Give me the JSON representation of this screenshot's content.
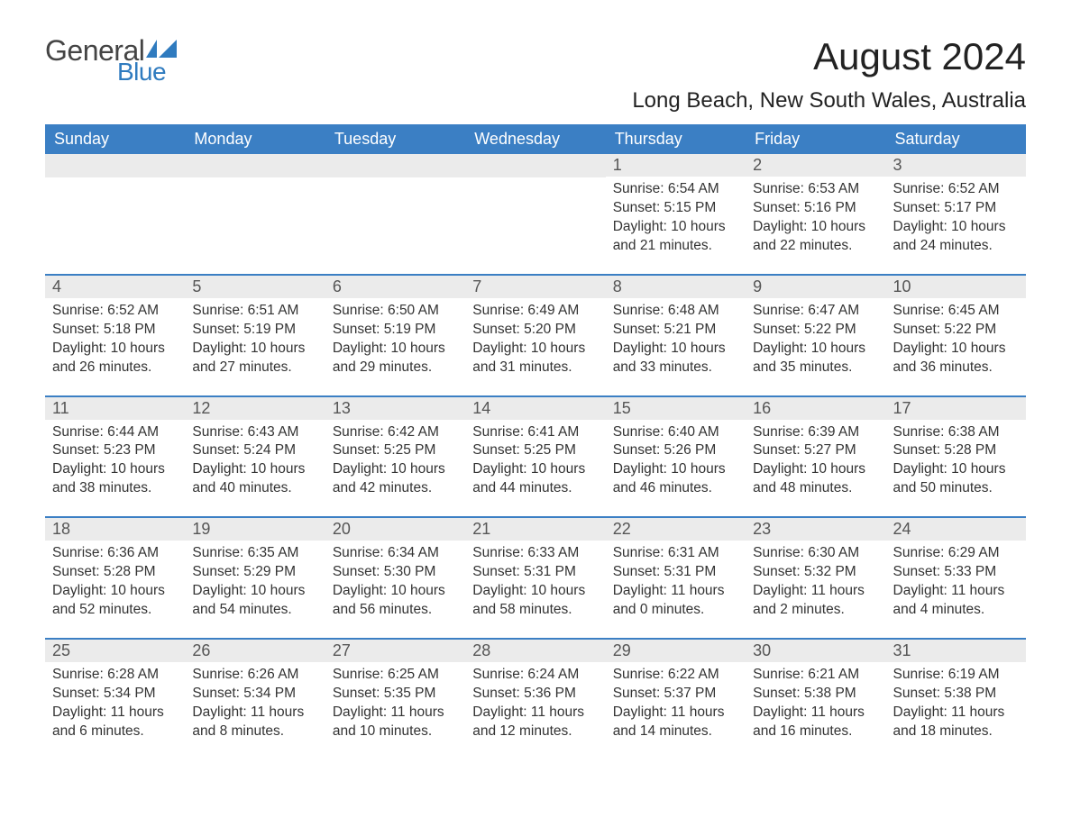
{
  "logo": {
    "text_general": "General",
    "text_blue": "Blue"
  },
  "title": "August 2024",
  "location": "Long Beach, New South Wales, Australia",
  "colors": {
    "header_bg": "#3b7fc4",
    "header_text": "#ffffff",
    "daynum_bg": "#ebebeb",
    "body_text": "#333333",
    "rule": "#3b7fc4",
    "logo_blue": "#2f7bbf"
  },
  "weekdays": [
    "Sunday",
    "Monday",
    "Tuesday",
    "Wednesday",
    "Thursday",
    "Friday",
    "Saturday"
  ],
  "weeks": [
    [
      null,
      null,
      null,
      null,
      {
        "n": "1",
        "sr": "Sunrise: 6:54 AM",
        "ss": "Sunset: 5:15 PM",
        "d1": "Daylight: 10 hours",
        "d2": "and 21 minutes."
      },
      {
        "n": "2",
        "sr": "Sunrise: 6:53 AM",
        "ss": "Sunset: 5:16 PM",
        "d1": "Daylight: 10 hours",
        "d2": "and 22 minutes."
      },
      {
        "n": "3",
        "sr": "Sunrise: 6:52 AM",
        "ss": "Sunset: 5:17 PM",
        "d1": "Daylight: 10 hours",
        "d2": "and 24 minutes."
      }
    ],
    [
      {
        "n": "4",
        "sr": "Sunrise: 6:52 AM",
        "ss": "Sunset: 5:18 PM",
        "d1": "Daylight: 10 hours",
        "d2": "and 26 minutes."
      },
      {
        "n": "5",
        "sr": "Sunrise: 6:51 AM",
        "ss": "Sunset: 5:19 PM",
        "d1": "Daylight: 10 hours",
        "d2": "and 27 minutes."
      },
      {
        "n": "6",
        "sr": "Sunrise: 6:50 AM",
        "ss": "Sunset: 5:19 PM",
        "d1": "Daylight: 10 hours",
        "d2": "and 29 minutes."
      },
      {
        "n": "7",
        "sr": "Sunrise: 6:49 AM",
        "ss": "Sunset: 5:20 PM",
        "d1": "Daylight: 10 hours",
        "d2": "and 31 minutes."
      },
      {
        "n": "8",
        "sr": "Sunrise: 6:48 AM",
        "ss": "Sunset: 5:21 PM",
        "d1": "Daylight: 10 hours",
        "d2": "and 33 minutes."
      },
      {
        "n": "9",
        "sr": "Sunrise: 6:47 AM",
        "ss": "Sunset: 5:22 PM",
        "d1": "Daylight: 10 hours",
        "d2": "and 35 minutes."
      },
      {
        "n": "10",
        "sr": "Sunrise: 6:45 AM",
        "ss": "Sunset: 5:22 PM",
        "d1": "Daylight: 10 hours",
        "d2": "and 36 minutes."
      }
    ],
    [
      {
        "n": "11",
        "sr": "Sunrise: 6:44 AM",
        "ss": "Sunset: 5:23 PM",
        "d1": "Daylight: 10 hours",
        "d2": "and 38 minutes."
      },
      {
        "n": "12",
        "sr": "Sunrise: 6:43 AM",
        "ss": "Sunset: 5:24 PM",
        "d1": "Daylight: 10 hours",
        "d2": "and 40 minutes."
      },
      {
        "n": "13",
        "sr": "Sunrise: 6:42 AM",
        "ss": "Sunset: 5:25 PM",
        "d1": "Daylight: 10 hours",
        "d2": "and 42 minutes."
      },
      {
        "n": "14",
        "sr": "Sunrise: 6:41 AM",
        "ss": "Sunset: 5:25 PM",
        "d1": "Daylight: 10 hours",
        "d2": "and 44 minutes."
      },
      {
        "n": "15",
        "sr": "Sunrise: 6:40 AM",
        "ss": "Sunset: 5:26 PM",
        "d1": "Daylight: 10 hours",
        "d2": "and 46 minutes."
      },
      {
        "n": "16",
        "sr": "Sunrise: 6:39 AM",
        "ss": "Sunset: 5:27 PM",
        "d1": "Daylight: 10 hours",
        "d2": "and 48 minutes."
      },
      {
        "n": "17",
        "sr": "Sunrise: 6:38 AM",
        "ss": "Sunset: 5:28 PM",
        "d1": "Daylight: 10 hours",
        "d2": "and 50 minutes."
      }
    ],
    [
      {
        "n": "18",
        "sr": "Sunrise: 6:36 AM",
        "ss": "Sunset: 5:28 PM",
        "d1": "Daylight: 10 hours",
        "d2": "and 52 minutes."
      },
      {
        "n": "19",
        "sr": "Sunrise: 6:35 AM",
        "ss": "Sunset: 5:29 PM",
        "d1": "Daylight: 10 hours",
        "d2": "and 54 minutes."
      },
      {
        "n": "20",
        "sr": "Sunrise: 6:34 AM",
        "ss": "Sunset: 5:30 PM",
        "d1": "Daylight: 10 hours",
        "d2": "and 56 minutes."
      },
      {
        "n": "21",
        "sr": "Sunrise: 6:33 AM",
        "ss": "Sunset: 5:31 PM",
        "d1": "Daylight: 10 hours",
        "d2": "and 58 minutes."
      },
      {
        "n": "22",
        "sr": "Sunrise: 6:31 AM",
        "ss": "Sunset: 5:31 PM",
        "d1": "Daylight: 11 hours",
        "d2": "and 0 minutes."
      },
      {
        "n": "23",
        "sr": "Sunrise: 6:30 AM",
        "ss": "Sunset: 5:32 PM",
        "d1": "Daylight: 11 hours",
        "d2": "and 2 minutes."
      },
      {
        "n": "24",
        "sr": "Sunrise: 6:29 AM",
        "ss": "Sunset: 5:33 PM",
        "d1": "Daylight: 11 hours",
        "d2": "and 4 minutes."
      }
    ],
    [
      {
        "n": "25",
        "sr": "Sunrise: 6:28 AM",
        "ss": "Sunset: 5:34 PM",
        "d1": "Daylight: 11 hours",
        "d2": "and 6 minutes."
      },
      {
        "n": "26",
        "sr": "Sunrise: 6:26 AM",
        "ss": "Sunset: 5:34 PM",
        "d1": "Daylight: 11 hours",
        "d2": "and 8 minutes."
      },
      {
        "n": "27",
        "sr": "Sunrise: 6:25 AM",
        "ss": "Sunset: 5:35 PM",
        "d1": "Daylight: 11 hours",
        "d2": "and 10 minutes."
      },
      {
        "n": "28",
        "sr": "Sunrise: 6:24 AM",
        "ss": "Sunset: 5:36 PM",
        "d1": "Daylight: 11 hours",
        "d2": "and 12 minutes."
      },
      {
        "n": "29",
        "sr": "Sunrise: 6:22 AM",
        "ss": "Sunset: 5:37 PM",
        "d1": "Daylight: 11 hours",
        "d2": "and 14 minutes."
      },
      {
        "n": "30",
        "sr": "Sunrise: 6:21 AM",
        "ss": "Sunset: 5:38 PM",
        "d1": "Daylight: 11 hours",
        "d2": "and 16 minutes."
      },
      {
        "n": "31",
        "sr": "Sunrise: 6:19 AM",
        "ss": "Sunset: 5:38 PM",
        "d1": "Daylight: 11 hours",
        "d2": "and 18 minutes."
      }
    ]
  ]
}
